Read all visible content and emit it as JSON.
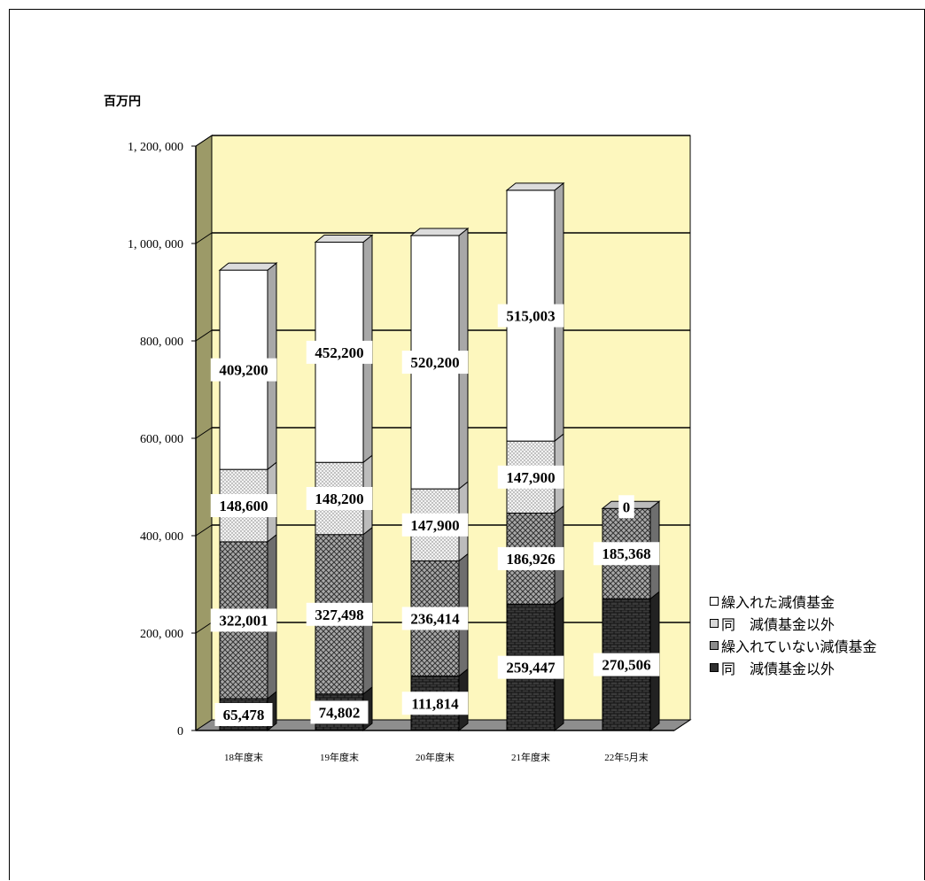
{
  "chart_data": {
    "type": "bar",
    "stacked": true,
    "ylabel": "百万円",
    "ylim": [
      0,
      1200000
    ],
    "yticks": [
      0,
      200000,
      400000,
      600000,
      800000,
      1000000,
      1200000
    ],
    "ytick_labels": [
      "0",
      "200, 000",
      "400, 000",
      "600, 000",
      "800, 000",
      "1, 000, 000",
      "1, 200, 000"
    ],
    "categories": [
      "18年度末",
      "19年度末",
      "20年度末",
      "21年度末",
      "22年5月末"
    ],
    "series": [
      {
        "name": "同 減債基金以外",
        "display_name": "同　減債基金以外",
        "values": [
          65478,
          74802,
          111814,
          259447,
          270506
        ],
        "labels": [
          "65,478",
          "74,802",
          "111,814",
          "259,447",
          "270,506"
        ],
        "fill": "#3a3a3a",
        "pattern": "brick"
      },
      {
        "name": "繰入れていない減債基金",
        "display_name": "繰入れていない減債基金",
        "values": [
          322001,
          327498,
          236414,
          186926,
          185368
        ],
        "labels": [
          "322,001",
          "327,498",
          "236,414",
          "186,926",
          "185,368"
        ],
        "fill": "#9a9a9a",
        "pattern": "cross"
      },
      {
        "name": "同 減債基金以外",
        "display_name": "同　減債基金以外",
        "values": [
          148600,
          148200,
          147900,
          147900,
          0
        ],
        "labels": [
          "148,600",
          "148,200",
          "147,900",
          "147,900",
          "0"
        ],
        "fill": "#e6e6e6",
        "pattern": "dots"
      },
      {
        "name": "繰入れた減債基金",
        "display_name": "繰入れた減債基金",
        "values": [
          409200,
          452200,
          520200,
          515003,
          0
        ],
        "labels": [
          "409,200",
          "452,200",
          "520,200",
          "515,003",
          ""
        ],
        "fill": "#ffffff",
        "pattern": "none"
      }
    ],
    "legend_order": [
      3,
      2,
      1,
      0
    ],
    "legend_position": "right",
    "grid": true,
    "colors": {
      "wall": "#fdf7be",
      "side_wall": "#9c9a68",
      "floor": "#8e8e8e",
      "gridline": "#000000"
    }
  }
}
